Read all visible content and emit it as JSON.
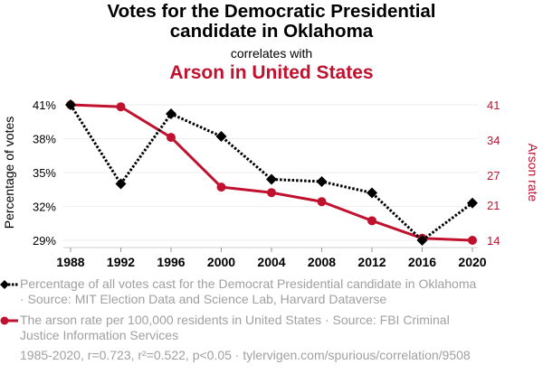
{
  "header": {
    "title": "Votes for the Democratic Presidential candidate in Oklahoma",
    "title_line1": "Votes for the Democratic Presidential",
    "title_line2": "candidate in Oklahoma",
    "connector": "correlates with",
    "title2": "Arson in United States"
  },
  "colors": {
    "series1": "#000000",
    "series2": "#c0122f",
    "grid": "#eeeeee",
    "legend_text": "#a0a0a0"
  },
  "chart_data": {
    "type": "line",
    "title": "Votes for the Democratic Presidential candidate in Oklahoma correlates with Arson in United States",
    "x": [
      1988,
      1992,
      1996,
      2000,
      2004,
      2008,
      2012,
      2016,
      2020
    ],
    "x_tick_labels": [
      "1988",
      "1992",
      "1996",
      "2000",
      "2004",
      "2008",
      "2012",
      "2016",
      "2020"
    ],
    "xlabel": "",
    "y_left": {
      "label": "Percentage of votes",
      "ylim": [
        29,
        41
      ],
      "ticks": [
        41,
        38,
        35,
        32,
        29
      ],
      "tick_labels": [
        "41%",
        "38%",
        "35%",
        "32%",
        "29%"
      ]
    },
    "y_right": {
      "label": "Arson rate",
      "ylim": [
        14,
        41
      ],
      "ticks": [
        41,
        34,
        27,
        21,
        14
      ],
      "tick_labels": [
        "41",
        "34",
        "27",
        "21",
        "14"
      ]
    },
    "grid": true,
    "series": [
      {
        "name": "Percentage of all votes cast for the Democrat Presidential candidate in Oklahoma",
        "axis": "left",
        "style": "dotted line with diamond markers",
        "values": [
          41.0,
          34.0,
          40.2,
          38.2,
          34.4,
          34.2,
          33.2,
          29.0,
          32.3
        ]
      },
      {
        "name": "The arson rate per 100,000 residents in United States",
        "axis": "right",
        "style": "solid line with circle markers",
        "values": [
          41.0,
          40.6,
          34.5,
          24.6,
          23.5,
          21.7,
          17.9,
          14.4,
          14.0
        ]
      }
    ],
    "legend_placement": "bottom"
  },
  "legend": [
    {
      "line1": "Percentage of all votes cast for the Democrat Presidential candidate in Oklahoma",
      "line2": "· Source: MIT Election Data and Science Lab, Harvard Dataverse"
    },
    {
      "line1": "The arson rate per 100,000 residents in United States · Source: FBI Criminal",
      "line2": "Justice Information Services"
    }
  ],
  "footer": "1985-2020, r=0.723, r²=0.522, p<0.05 · tylervigen.com/spurious/correlation/9508"
}
